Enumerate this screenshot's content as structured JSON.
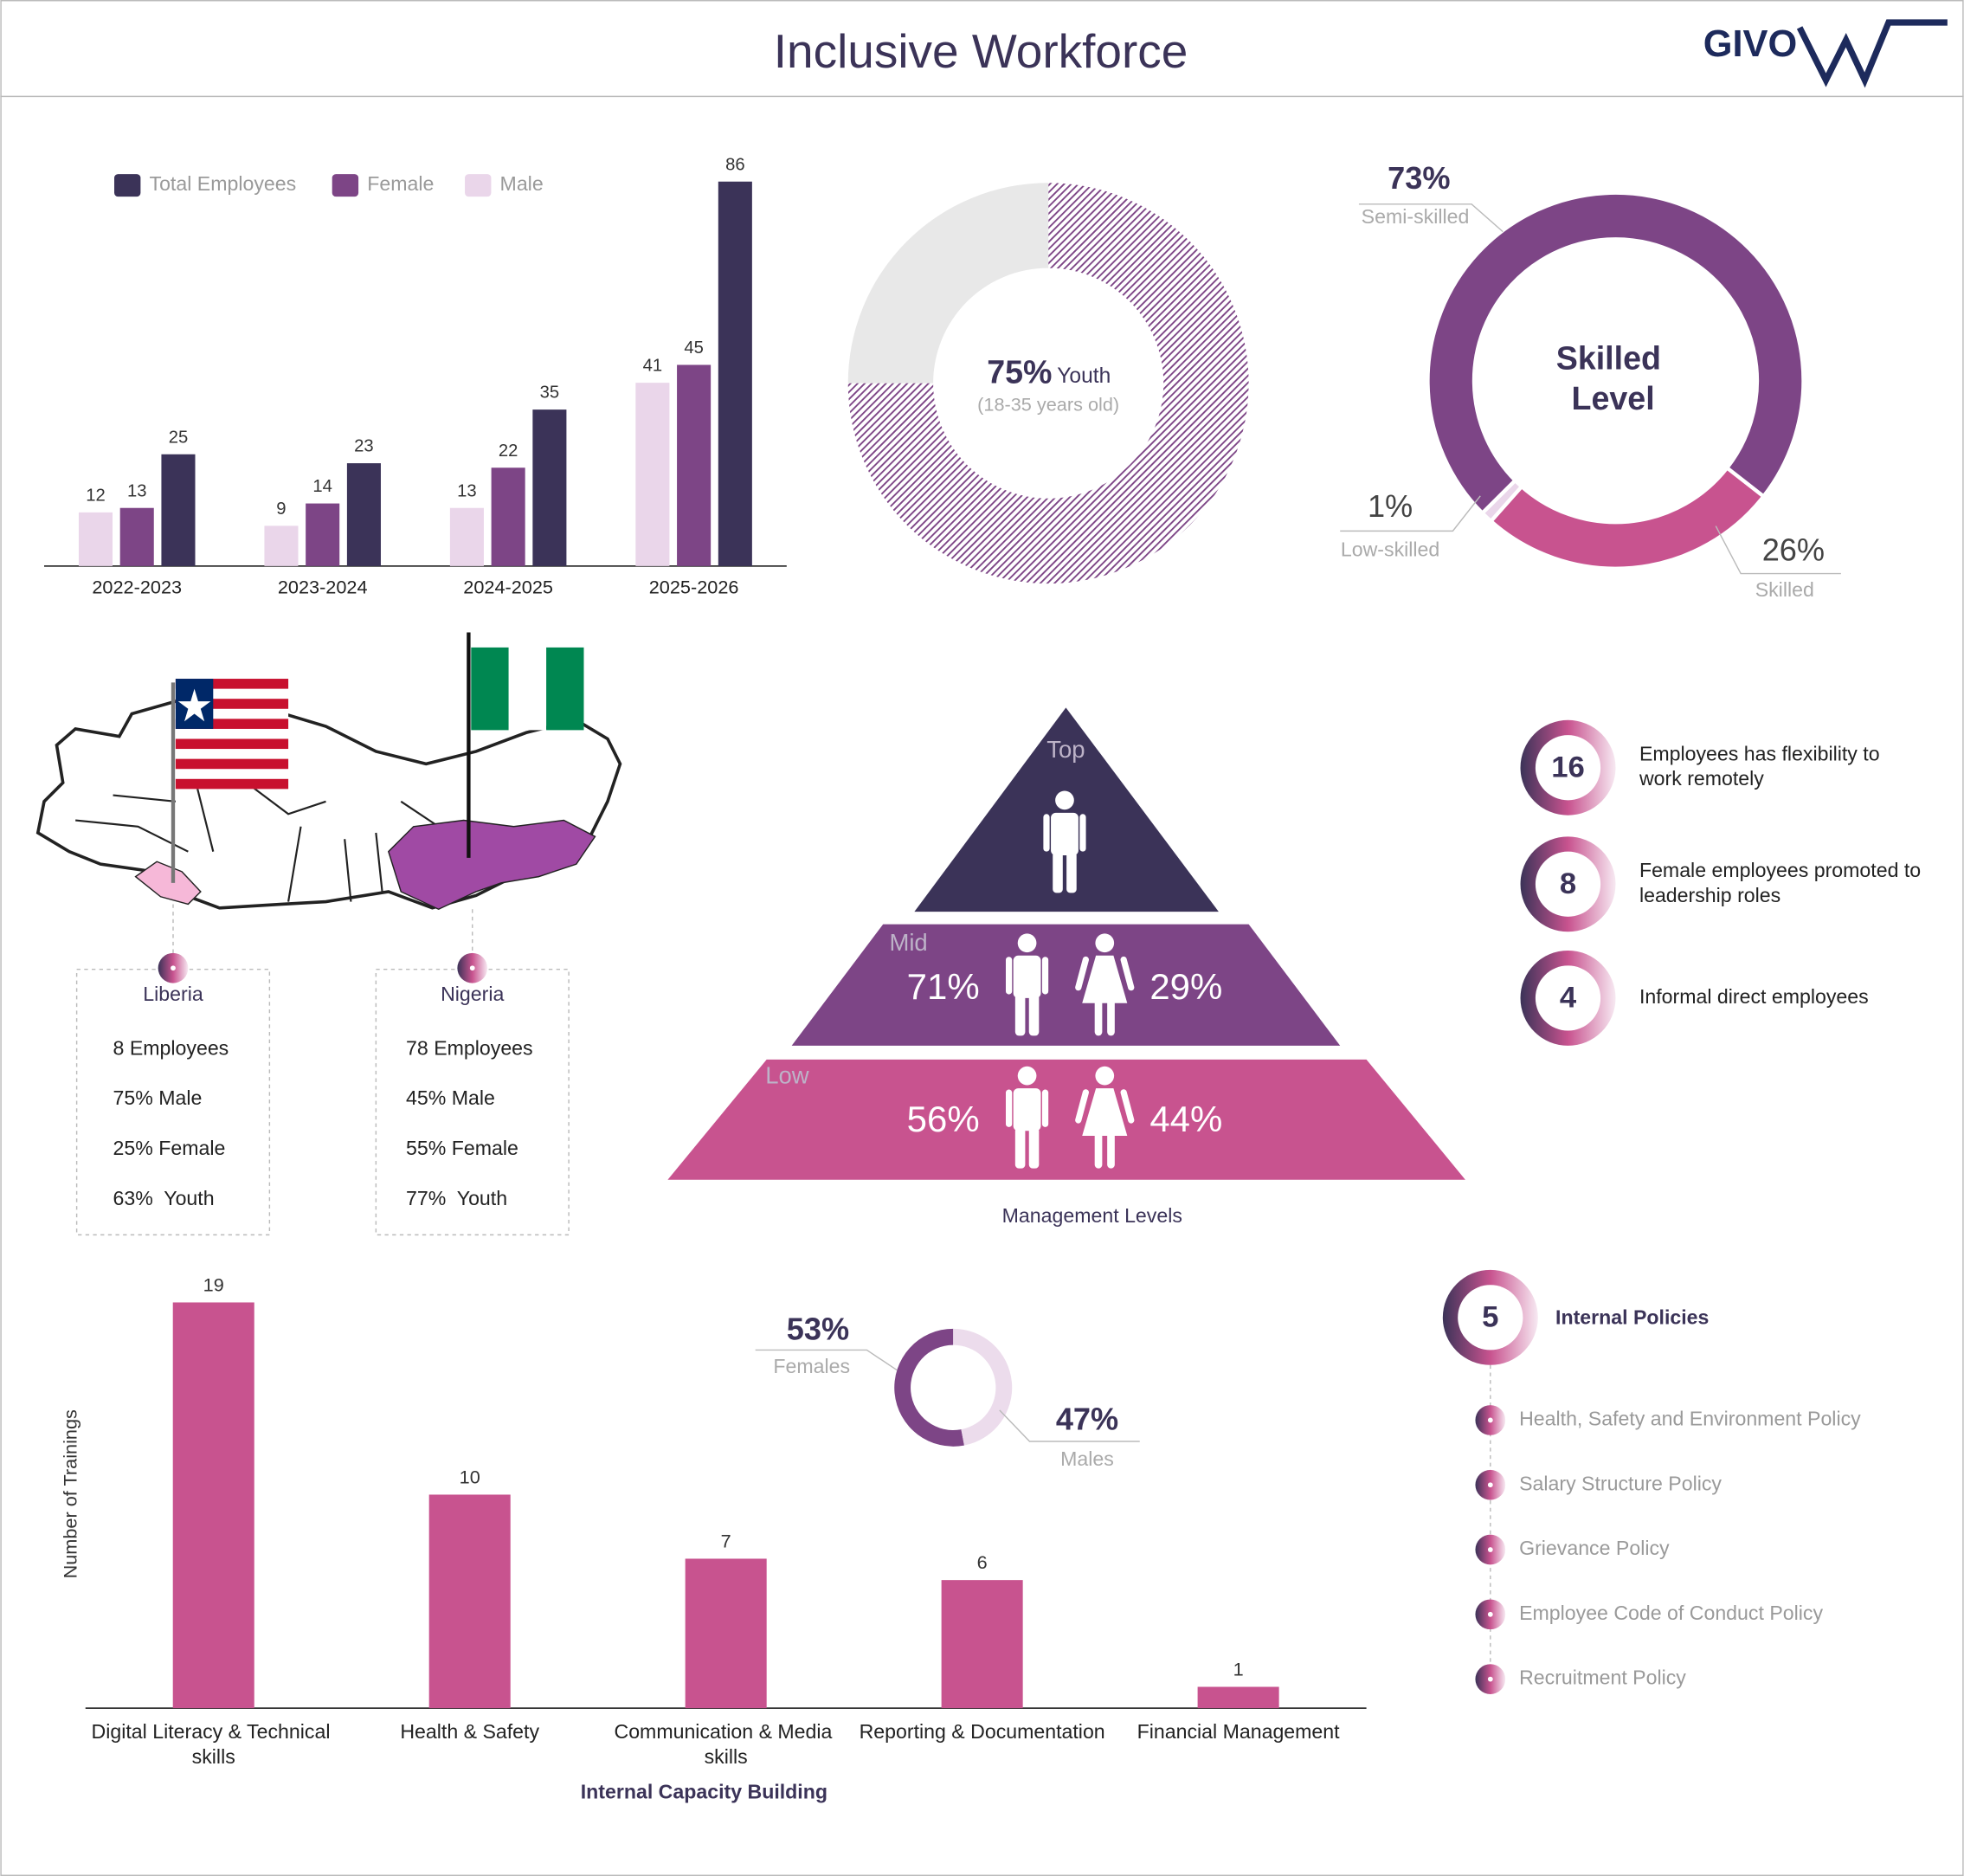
{
  "title": "Inclusive Workforce",
  "logo": "GIVO",
  "chart_data": [
    {
      "type": "bar",
      "categories": [
        "2022-2023",
        "2023-2024",
        "2024-2025",
        "2025-2026"
      ],
      "series": [
        {
          "name": "Male",
          "color": "#ead6ea",
          "values": [
            12,
            9,
            13,
            41
          ]
        },
        {
          "name": "Female",
          "color": "#7d4586",
          "values": [
            13,
            14,
            22,
            45
          ]
        },
        {
          "name": "Total Employees",
          "color": "#3b3358",
          "values": [
            25,
            23,
            35,
            86
          ]
        }
      ]
    },
    {
      "type": "donut",
      "categories": [
        "Youth",
        null
      ],
      "values": [
        75,
        25
      ],
      "value_labels": [
        "75%",
        null
      ],
      "subtitle": "(18-35 years old)",
      "colors": [
        "#7d4586",
        "#e8e8e8"
      ],
      "hatched": true
    },
    {
      "type": "donut",
      "title": "Skilled Level",
      "categories": [
        "Skilled",
        "Low-skilled",
        "Semi-skilled"
      ],
      "values": [
        26,
        1,
        73
      ],
      "value_labels": [
        "26%",
        "1%",
        "73%"
      ],
      "colors": [
        "#c8538f",
        "#ead6ea",
        "#7d4586"
      ]
    },
    {
      "type": "pyramid",
      "title": "Management Levels",
      "categories": [
        "Top",
        "Mid",
        "Low"
      ],
      "colors": [
        "#3b3358",
        "#7d4586",
        "#c8538f"
      ],
      "series": [
        {
          "values": [
            null,
            71,
            56
          ],
          "value_labels": [
            null,
            "71%",
            "56%"
          ]
        },
        {
          "values": [
            null,
            29,
            44
          ],
          "value_labels": [
            null,
            "29%",
            "44%"
          ]
        }
      ]
    },
    {
      "type": "bar",
      "categories": [
        "Digital Literacy & Technical skills",
        "Health & Safety",
        "Communication & Media skills",
        "Reporting & Documentation",
        "Financial Management"
      ],
      "values": [
        19,
        10,
        7,
        6,
        1
      ],
      "color": "#c8538f",
      "ylabel": "Number of Trainings",
      "xlabel": "Internal Capacity Building"
    },
    {
      "type": "donut",
      "categories": [
        "Females",
        "Males"
      ],
      "values": [
        53,
        47
      ],
      "value_labels": [
        "53%",
        "47%"
      ],
      "colors": [
        "#7d4586",
        "#ecdcec"
      ]
    }
  ],
  "countries": [
    {
      "name": "Liberia",
      "items": [
        "8 Employees",
        "75% Male",
        "25% Female",
        "63%  Youth"
      ]
    },
    {
      "name": "Nigeria",
      "items": [
        "78 Employees",
        "45% Male",
        "55% Female",
        "77%  Youth"
      ]
    }
  ],
  "highlights": [
    {
      "value": 16,
      "label": "Employees has flexibility to work remotely"
    },
    {
      "value": 8,
      "label": "Female employees promoted to leadership roles"
    },
    {
      "value": 4,
      "label": "Informal direct employees"
    }
  ],
  "policies": {
    "count": 5,
    "title": "Internal Policies",
    "items": [
      "Health, Safety and Environment Policy",
      "Salary Structure Policy",
      "Grievance Policy",
      "Employee Code of Conduct Policy",
      "Recruitment Policy"
    ]
  }
}
